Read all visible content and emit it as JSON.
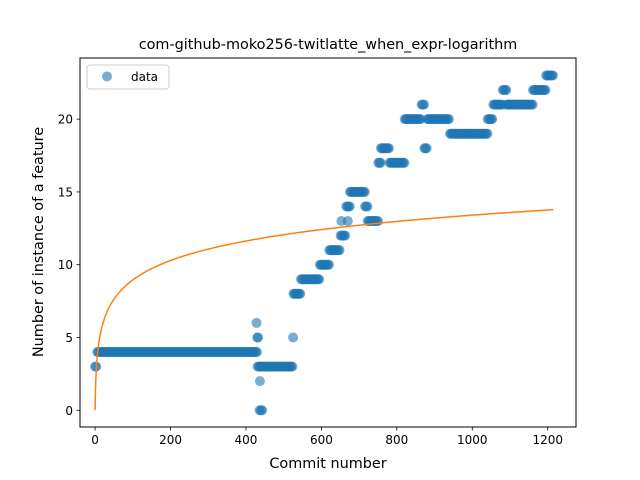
{
  "chart_data": {
    "type": "scatter",
    "title": "com-github-moko256-twitlatte_when_expr-logarithm",
    "xlabel": "Commit number",
    "ylabel": "Number of instance of a feature",
    "xlim": [
      -40,
      1275
    ],
    "ylim": [
      -1.15,
      24.2
    ],
    "xticks": [
      0,
      200,
      400,
      600,
      800,
      1000,
      1200
    ],
    "yticks": [
      0,
      5,
      10,
      15,
      20
    ],
    "grid": false,
    "legend": {
      "placement": "top-left",
      "entries": [
        "data"
      ]
    },
    "colors": {
      "data": "#1f77b4",
      "fit": "#ff7f0e"
    },
    "series": [
      {
        "name": "data",
        "kind": "scatter",
        "segments": [
          {
            "x_start": 0,
            "x_end": 5,
            "y": 3
          },
          {
            "x_start": 6,
            "x_end": 430,
            "y": 4
          },
          {
            "x_start": 431,
            "x_end": 438,
            "y": 3
          },
          {
            "x_start": 439,
            "x_end": 525,
            "y": 3
          },
          {
            "x_start": 526,
            "x_end": 545,
            "y": 8
          },
          {
            "x_start": 546,
            "x_end": 595,
            "y": 9
          },
          {
            "x_start": 596,
            "x_end": 620,
            "y": 10
          },
          {
            "x_start": 621,
            "x_end": 650,
            "y": 11
          },
          {
            "x_start": 651,
            "x_end": 665,
            "y": 12
          },
          {
            "x_start": 666,
            "x_end": 675,
            "y": 14
          },
          {
            "x_start": 676,
            "x_end": 715,
            "y": 15
          },
          {
            "x_start": 716,
            "x_end": 722,
            "y": 14
          },
          {
            "x_start": 723,
            "x_end": 750,
            "y": 13
          },
          {
            "x_start": 751,
            "x_end": 757,
            "y": 17
          },
          {
            "x_start": 758,
            "x_end": 780,
            "y": 18
          },
          {
            "x_start": 781,
            "x_end": 820,
            "y": 17
          },
          {
            "x_start": 821,
            "x_end": 865,
            "y": 20
          },
          {
            "x_start": 866,
            "x_end": 872,
            "y": 21
          },
          {
            "x_start": 873,
            "x_end": 880,
            "y": 18
          },
          {
            "x_start": 881,
            "x_end": 940,
            "y": 20
          },
          {
            "x_start": 941,
            "x_end": 1040,
            "y": 19
          },
          {
            "x_start": 1041,
            "x_end": 1055,
            "y": 20
          },
          {
            "x_start": 1056,
            "x_end": 1080,
            "y": 21
          },
          {
            "x_start": 1081,
            "x_end": 1090,
            "y": 22
          },
          {
            "x_start": 1091,
            "x_end": 1160,
            "y": 21
          },
          {
            "x_start": 1161,
            "x_end": 1195,
            "y": 22
          },
          {
            "x_start": 1196,
            "x_end": 1215,
            "y": 23
          }
        ],
        "points": [
          {
            "x": 428,
            "y": 6
          },
          {
            "x": 430,
            "y": 5
          },
          {
            "x": 432,
            "y": 5
          },
          {
            "x": 436,
            "y": 0
          },
          {
            "x": 440,
            "y": 0
          },
          {
            "x": 443,
            "y": 0
          },
          {
            "x": 437,
            "y": 2
          },
          {
            "x": 525,
            "y": 5
          },
          {
            "x": 653,
            "y": 13
          },
          {
            "x": 670,
            "y": 13
          }
        ]
      },
      {
        "kind": "line",
        "x_range": [
          0,
          1215
        ],
        "equation": "y = 1.94 * ln(x + 1)"
      }
    ]
  }
}
